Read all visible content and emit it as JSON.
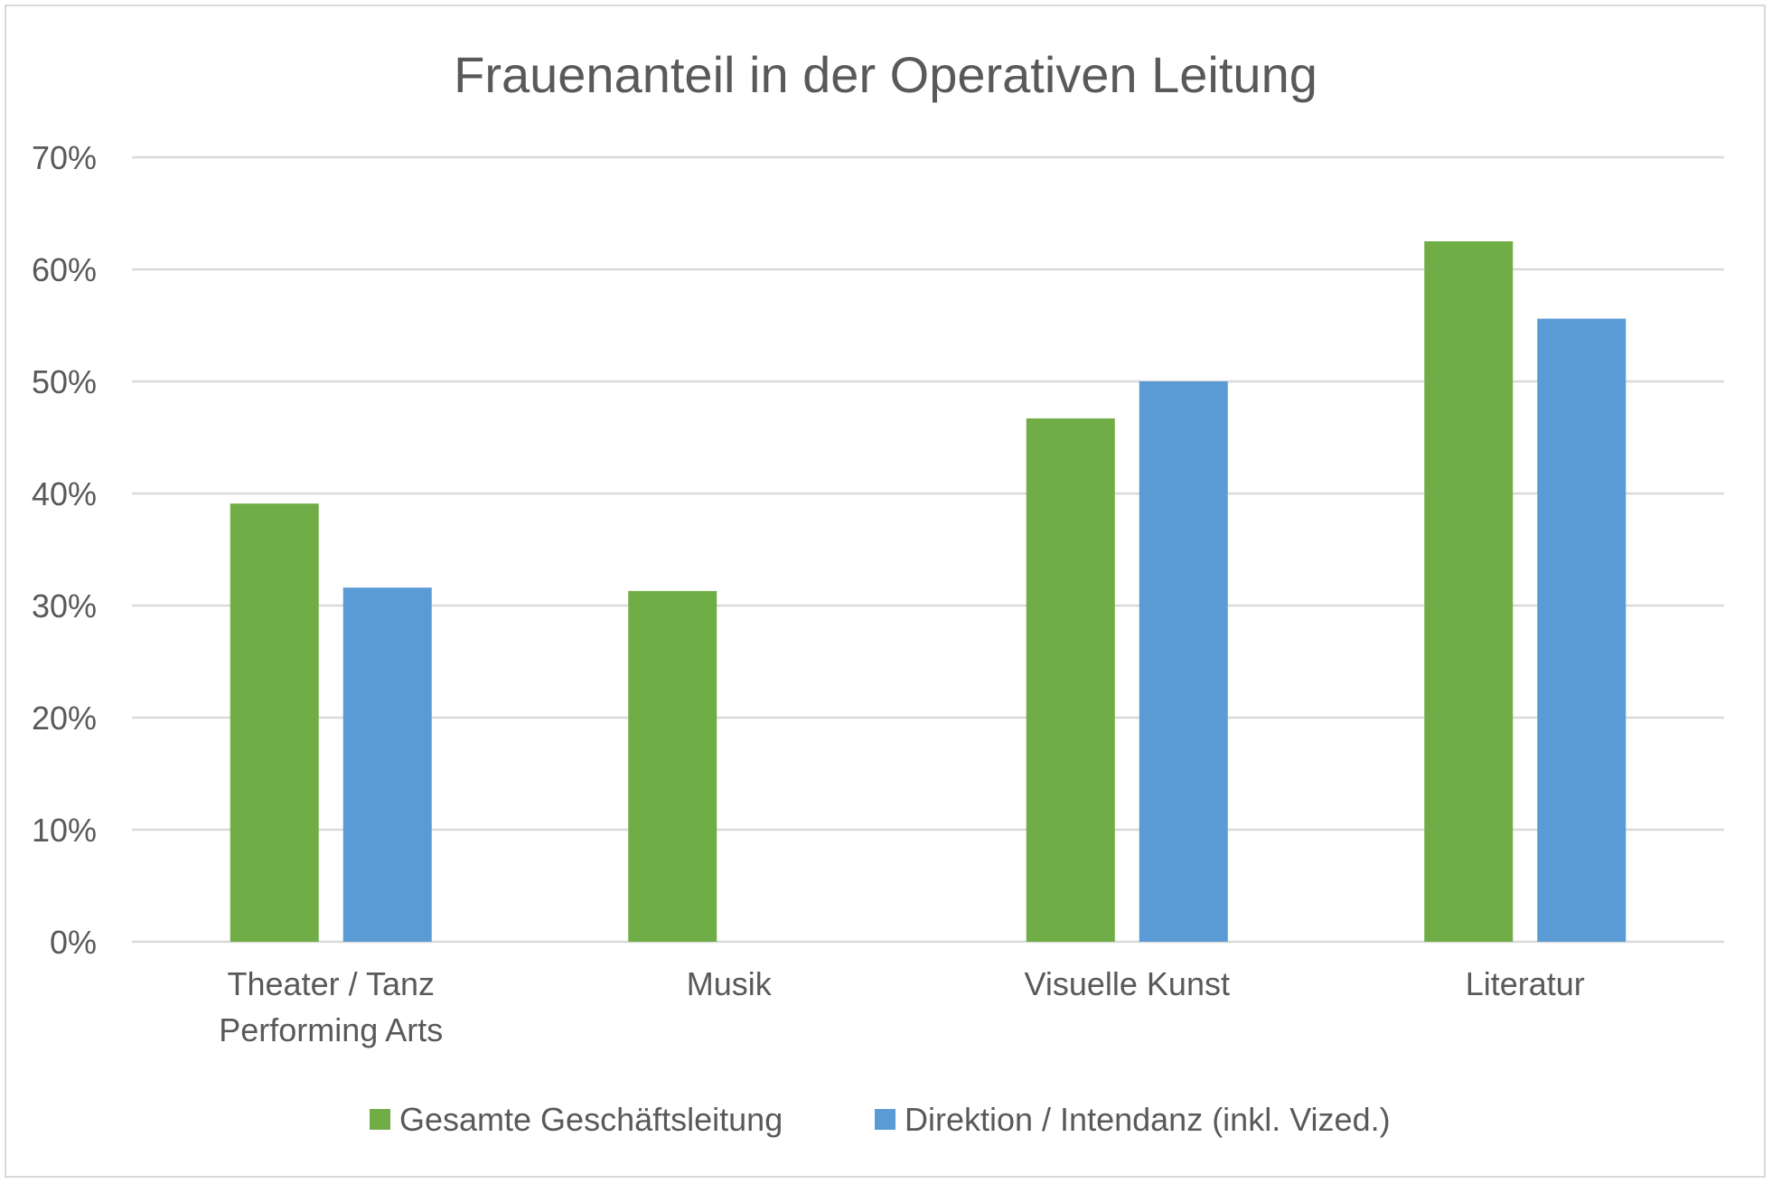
{
  "chart_data": {
    "type": "bar",
    "title": "Frauenanteil in der Operativen Leitung",
    "xlabel": "",
    "ylabel": "",
    "categories": [
      [
        "Theater / Tanz",
        "Performing Arts"
      ],
      [
        "Musik"
      ],
      [
        "Visuelle Kunst"
      ],
      [
        "Literatur"
      ]
    ],
    "y_ticks": [
      "0%",
      "10%",
      "20%",
      "30%",
      "40%",
      "50%",
      "60%",
      "70%"
    ],
    "ylim": [
      0,
      70
    ],
    "grid": true,
    "legend_position": "bottom",
    "series": [
      {
        "name": "Gesamte Geschäftsleitung",
        "color": "#70ad47",
        "values": [
          39.1,
          31.3,
          46.7,
          62.5
        ]
      },
      {
        "name": "Direktion / Intendanz (inkl. Vized.)",
        "color": "#5b9bd5",
        "values": [
          31.6,
          0,
          50.0,
          55.6
        ]
      }
    ]
  },
  "colors": {
    "gridline": "#d9d9d9",
    "text": "#595959",
    "title": "#595959"
  }
}
